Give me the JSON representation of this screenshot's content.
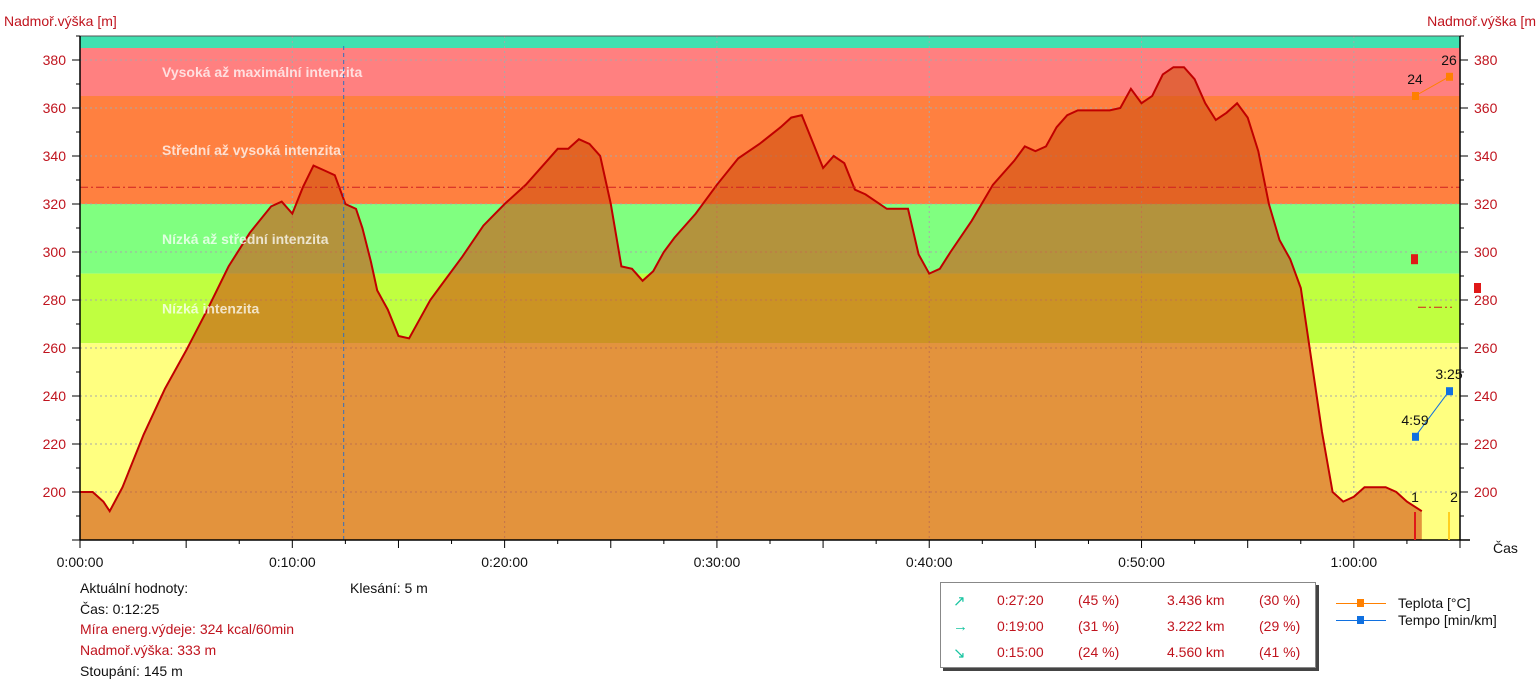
{
  "chart_data": {
    "type": "area",
    "axis_title_left": "Nadmoř.výška [m]",
    "axis_title_right": "Nadmoř.výška [m",
    "axis_title_x": "Čas",
    "ylim": [
      180,
      390
    ],
    "yticks": [
      200,
      220,
      240,
      260,
      280,
      300,
      320,
      340,
      360,
      380
    ],
    "xlim_min": [
      0,
      65
    ],
    "xticks": [
      {
        "v": 0,
        "label": "0:00:00"
      },
      {
        "v": 10,
        "label": "0:10:00"
      },
      {
        "v": 20,
        "label": "0:20:00"
      },
      {
        "v": 30,
        "label": "0:30:00"
      },
      {
        "v": 40,
        "label": "0:40:00"
      },
      {
        "v": 50,
        "label": "0:50:00"
      },
      {
        "v": 60,
        "label": "1:00:00"
      }
    ],
    "zones": [
      {
        "label": "Vysoká až maximální intenzita",
        "from": 365,
        "to": 385,
        "color": "#ff8080"
      },
      {
        "label": "Střední až vysoká intenzita",
        "from": 320,
        "to": 365,
        "color": "#ff8040"
      },
      {
        "label": "Nízká až střední intenzita",
        "from": 291,
        "to": 320,
        "color": "#80ff80"
      },
      {
        "label": "Nízká intenzita",
        "from": 262,
        "to": 291,
        "color": "#c0ff40"
      },
      {
        "label": "",
        "from": 180,
        "to": 262,
        "color": "#ffff80"
      },
      {
        "label": "",
        "from": 385,
        "to": 390,
        "color": "#40e0b0"
      }
    ],
    "threshold_line": 327,
    "cursor_min": 12.42,
    "series": [
      {
        "name": "Nadmoř.výška",
        "color": "#c00000",
        "x": [
          0,
          0.6,
          1.1,
          1.4,
          2,
          3,
          4,
          5,
          6,
          7,
          8,
          9,
          9.5,
          10,
          10.5,
          11,
          11.5,
          12,
          12.5,
          13,
          13.3,
          13.7,
          14,
          14.5,
          15,
          15.5,
          16,
          16.5,
          17,
          18,
          19,
          20,
          21,
          22,
          22.5,
          23,
          23.5,
          24,
          24.5,
          25,
          25.5,
          26,
          26.5,
          27,
          27.5,
          28,
          29,
          30,
          31,
          32,
          33,
          33.5,
          34,
          34.5,
          35,
          35.5,
          36,
          36.5,
          37,
          38,
          38.5,
          39,
          39.5,
          40,
          40.5,
          41,
          42,
          43,
          44,
          44.5,
          45,
          45.5,
          46,
          46.5,
          47,
          48,
          48.5,
          49,
          49.5,
          50,
          50.5,
          51,
          51.5,
          52,
          52.5,
          53,
          53.5,
          54,
          54.5,
          55,
          55.5,
          56,
          56.5,
          57,
          57.5,
          58,
          58.5,
          59,
          59.5,
          60,
          60.5,
          61,
          61.5,
          62,
          62.5,
          63.2
        ],
        "y": [
          200,
          200,
          196,
          192,
          202,
          224,
          243,
          259,
          276,
          294,
          308,
          319,
          321,
          316,
          327,
          336,
          334,
          332,
          320,
          318,
          310,
          296,
          284,
          276,
          265,
          264,
          272,
          280,
          286,
          298,
          311,
          320,
          328,
          338,
          343,
          343,
          347,
          345,
          340,
          320,
          294,
          293,
          288,
          292,
          300,
          306,
          316,
          328,
          339,
          345,
          352,
          356,
          357,
          346,
          335,
          340,
          337,
          326,
          324,
          318,
          318,
          318,
          299,
          291,
          293,
          300,
          313,
          328,
          338,
          344,
          342,
          344,
          352,
          357,
          359,
          359,
          359,
          360,
          368,
          362,
          365,
          374,
          377,
          377,
          372,
          362,
          355,
          358,
          362,
          356,
          342,
          320,
          305,
          297,
          285,
          255,
          225,
          200,
          196,
          198,
          202,
          202,
          202,
          200,
          196,
          192
        ]
      }
    ],
    "right_markers": {
      "teplota": {
        "label": "Teplota [°C]",
        "color": "#ff8000",
        "points": [
          {
            "v": 365,
            "label": "24"
          },
          {
            "v": 373,
            "label": "26"
          }
        ]
      },
      "tempo": {
        "label": "Tempo [min/km]",
        "color": "#1070e0",
        "points": [
          {
            "v": 223,
            "label": "4:59"
          },
          {
            "v": 242,
            "label": "3:25"
          }
        ]
      },
      "red_points": [
        297,
        285
      ],
      "lap_labels": [
        "1",
        "2"
      ]
    }
  },
  "info": {
    "current_title": "Aktuální hodnoty:",
    "time": "Čas: 0:12:25",
    "energy": "Míra energ.výdeje: 324 kcal/60min",
    "altitude": "Nadmoř.výška: 333 m",
    "ascent": "Stoupání: 145 m",
    "descent": "Klesání: 5 m"
  },
  "stats": [
    {
      "arrow": "↗",
      "time": "0:27:20",
      "time_pct": "(45 %)",
      "dist": "3.436 km",
      "dist_pct": "(30 %)"
    },
    {
      "arrow": "→",
      "time": "0:19:00",
      "time_pct": "(31 %)",
      "dist": "3.222 km",
      "dist_pct": "(29 %)"
    },
    {
      "arrow": "↘",
      "time": "0:15:00",
      "time_pct": "(24 %)",
      "dist": "4.560 km",
      "dist_pct": "(41 %)"
    }
  ],
  "legend": [
    {
      "label": "Teplota [°C]",
      "color": "#ff8000"
    },
    {
      "label": "Tempo [min/km]",
      "color": "#1070e0"
    }
  ]
}
